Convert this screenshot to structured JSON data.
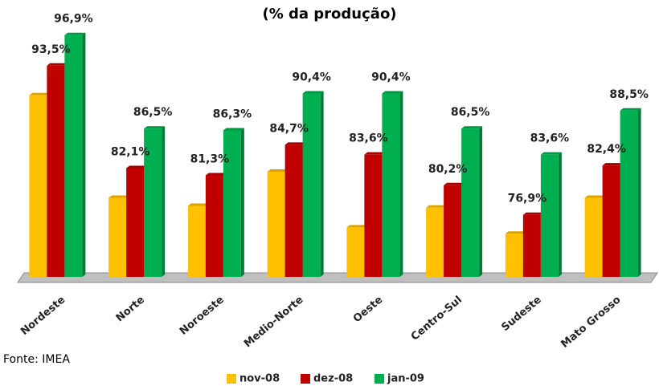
{
  "chart_data": {
    "type": "bar",
    "title": "(% da produção)",
    "source": "Fonte: IMEA",
    "categories": [
      "Nordeste",
      "Norte",
      "Noroeste",
      "Medio-Norte",
      "Oeste",
      "Centro-Sul",
      "Sudeste",
      "Mato Grosso"
    ],
    "series": [
      {
        "name": "nov-08",
        "color": "#ffc000",
        "values": [
          90.2,
          78.8,
          77.9,
          81.7,
          75.5,
          77.7,
          74.8,
          78.8
        ]
      },
      {
        "name": "dez-08",
        "color": "#c00000",
        "values": [
          93.5,
          82.1,
          81.3,
          84.7,
          83.6,
          80.2,
          76.9,
          82.4
        ],
        "value_labels": [
          "93,5%",
          "82,1%",
          "81,3%",
          "84,7%",
          "83,6%",
          "80,2%",
          "76,9%",
          "82,4%"
        ]
      },
      {
        "name": "jan-09",
        "color": "#00b050",
        "values": [
          96.9,
          86.5,
          86.3,
          90.4,
          90.4,
          86.5,
          83.6,
          88.5
        ],
        "value_labels": [
          "96,9%",
          "86,5%",
          "86,3%",
          "90,4%",
          "90,4%",
          "86,5%",
          "83,6%",
          "88,5%"
        ]
      }
    ],
    "ylim": [
      70,
      100
    ],
    "legend": "bottom"
  }
}
